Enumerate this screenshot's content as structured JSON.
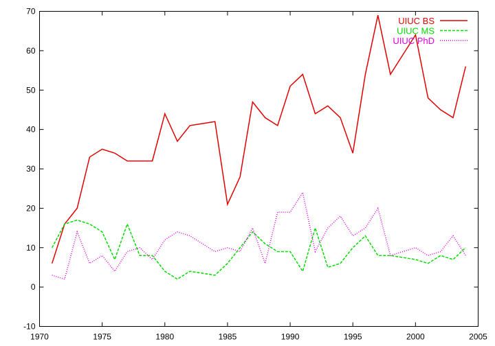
{
  "chart_data": {
    "type": "line",
    "title": "",
    "xlabel": "",
    "ylabel": "",
    "xlim": [
      1970,
      2005
    ],
    "ylim": [
      -10,
      70
    ],
    "xticks": [
      1970,
      1975,
      1980,
      1985,
      1990,
      1995,
      2000,
      2005
    ],
    "yticks": [
      -10,
      0,
      10,
      20,
      30,
      40,
      50,
      60,
      70
    ],
    "grid": false,
    "legend_position": "top-right",
    "series": [
      {
        "name": "UIUC BS",
        "color": "#e00000",
        "dash": "solid",
        "x": [
          1971,
          1972,
          1973,
          1974,
          1975,
          1976,
          1977,
          1978,
          1979,
          1980,
          1981,
          1982,
          1983,
          1984,
          1985,
          1986,
          1987,
          1988,
          1989,
          1990,
          1991,
          1992,
          1993,
          1994,
          1995,
          1996,
          1997,
          1998,
          1999,
          2000,
          2001,
          2002,
          2003,
          2004
        ],
        "y": [
          6,
          16,
          20,
          33,
          35,
          34,
          32,
          32,
          32,
          44,
          37,
          41,
          41.5,
          42,
          21,
          28,
          47,
          43,
          41,
          51,
          54,
          44,
          46,
          43,
          34,
          54,
          69,
          54,
          59,
          64,
          48,
          45,
          43,
          56
        ]
      },
      {
        "name": "UIUC MS",
        "color": "#00dd00",
        "dash": "dashed",
        "x": [
          1971,
          1972,
          1973,
          1974,
          1975,
          1976,
          1977,
          1978,
          1979,
          1980,
          1981,
          1982,
          1983,
          1984,
          1985,
          1986,
          1987,
          1988,
          1989,
          1990,
          1991,
          1992,
          1993,
          1994,
          1995,
          1996,
          1997,
          1998,
          1999,
          2000,
          2001,
          2002,
          2003,
          2004
        ],
        "y": [
          10,
          16,
          17,
          16,
          14,
          7,
          16,
          8,
          8,
          4,
          2,
          4,
          3.5,
          3,
          6,
          10,
          14,
          11,
          9,
          9,
          4,
          15,
          5,
          6,
          10,
          13,
          8,
          8,
          7.5,
          7,
          6,
          8,
          7,
          10
        ]
      },
      {
        "name": "UIUC PhD",
        "color": "#e000e0",
        "dash": "dotted",
        "x": [
          1971,
          1972,
          1973,
          1974,
          1975,
          1976,
          1977,
          1978,
          1979,
          1980,
          1981,
          1982,
          1983,
          1984,
          1985,
          1986,
          1987,
          1988,
          1989,
          1990,
          1991,
          1992,
          1993,
          1994,
          1995,
          1996,
          1997,
          1998,
          1999,
          2000,
          2001,
          2002,
          2003,
          2004
        ],
        "y": [
          3,
          2,
          14,
          6,
          8,
          4,
          9,
          10,
          7,
          12,
          14,
          13,
          11,
          9,
          10,
          9,
          15,
          6,
          19,
          19,
          24,
          9,
          15,
          18,
          13,
          15,
          20,
          8,
          9,
          10,
          8,
          9,
          13,
          8
        ]
      }
    ]
  }
}
